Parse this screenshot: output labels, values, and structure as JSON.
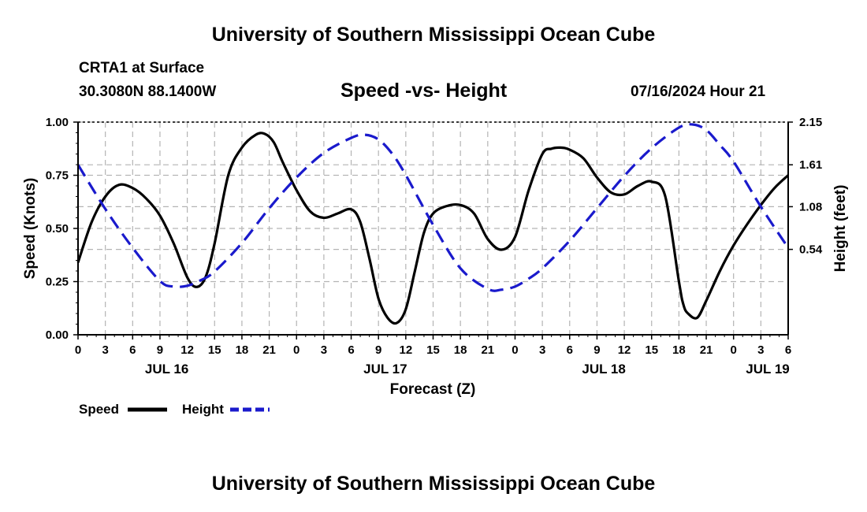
{
  "page": {
    "title_top": "University of Southern Mississippi Ocean Cube",
    "title_bottom": "University of Southern Mississippi Ocean Cube",
    "station": "CRTA1 at Surface",
    "coords": "30.3080N  88.1400W",
    "datetime": "07/16/2024 Hour 21"
  },
  "chart_data": {
    "type": "line",
    "title": "Speed -vs- Height",
    "xlabel": "Forecast (Z)",
    "ylabel": "Speed (Knots)",
    "y2label": "Height (feet)",
    "x_unit": "hours from JUL 16 00Z",
    "xlim": [
      0,
      78
    ],
    "ylim": [
      0,
      1.0
    ],
    "y2lim": [
      -0.54,
      2.15
    ],
    "x_tick_values": [
      0,
      3,
      6,
      9,
      12,
      15,
      18,
      21,
      24,
      27,
      30,
      33,
      36,
      39,
      42,
      45,
      48,
      51,
      54,
      57,
      60,
      63,
      66,
      69,
      72,
      75,
      78
    ],
    "x_tick_labels": [
      "0",
      "3",
      "6",
      "9",
      "12",
      "15",
      "18",
      "21",
      "0",
      "3",
      "6",
      "9",
      "12",
      "15",
      "18",
      "21",
      "0",
      "3",
      "6",
      "9",
      "12",
      "15",
      "18",
      "21",
      "0",
      "3",
      "6"
    ],
    "date_labels": [
      {
        "label": "JUL 16",
        "x": 9.75
      },
      {
        "label": "JUL 17",
        "x": 33.75
      },
      {
        "label": "JUL 18",
        "x": 57.75
      },
      {
        "label": "JUL 19",
        "x": 75.75
      }
    ],
    "y_tick_values": [
      0,
      0.25,
      0.5,
      0.75,
      1.0
    ],
    "y_tick_labels": [
      "0.00",
      "0.25",
      "0.50",
      "0.75",
      "1.00"
    ],
    "y2_tick_values": [
      0.54,
      1.08,
      1.61,
      2.15
    ],
    "y2_tick_labels": [
      "0.54",
      "1.08",
      "1.61",
      "2.15"
    ],
    "grid": true,
    "legend_position": "bottom-left",
    "series": [
      {
        "name": "Speed",
        "axis": "left",
        "color": "#000000",
        "dash": "solid",
        "x": [
          0,
          1.5,
          3,
          4.5,
          6,
          7.5,
          9,
          10.5,
          12,
          13,
          14,
          15,
          16.5,
          18,
          19.5,
          20.5,
          21.5,
          22.5,
          24,
          25.5,
          27,
          28.5,
          30,
          31,
          32,
          33,
          34,
          35,
          36,
          37,
          38,
          39,
          40.5,
          42,
          43.5,
          45,
          46.5,
          48,
          49.5,
          51,
          52,
          53,
          54,
          55.5,
          57,
          58.5,
          60,
          61.5,
          63,
          64.5,
          66,
          66.5,
          67,
          68,
          69,
          70.5,
          72,
          73.5,
          75,
          76.5,
          78
        ],
        "values": [
          0.34,
          0.53,
          0.65,
          0.705,
          0.69,
          0.64,
          0.56,
          0.43,
          0.27,
          0.225,
          0.27,
          0.43,
          0.75,
          0.88,
          0.94,
          0.945,
          0.905,
          0.81,
          0.68,
          0.58,
          0.55,
          0.57,
          0.59,
          0.53,
          0.36,
          0.17,
          0.08,
          0.055,
          0.12,
          0.3,
          0.48,
          0.57,
          0.605,
          0.61,
          0.57,
          0.45,
          0.4,
          0.46,
          0.68,
          0.85,
          0.875,
          0.88,
          0.87,
          0.83,
          0.74,
          0.67,
          0.66,
          0.7,
          0.72,
          0.65,
          0.25,
          0.14,
          0.1,
          0.08,
          0.16,
          0.3,
          0.42,
          0.52,
          0.61,
          0.69,
          0.75
        ]
      },
      {
        "name": "Height",
        "axis": "right",
        "color": "#1a1acc",
        "dash": "dashed",
        "x": [
          0,
          3,
          6,
          9,
          10.5,
          12,
          13.5,
          15,
          18,
          21,
          24,
          27,
          30,
          31.5,
          33,
          34.5,
          36,
          39,
          42,
          45,
          46.5,
          48,
          49.5,
          51,
          54,
          57,
          60,
          63,
          66,
          67.5,
          69,
          70.5,
          72,
          75,
          78
        ],
        "values": [
          1.61,
          1.05,
          0.56,
          0.14,
          0.07,
          0.08,
          0.15,
          0.26,
          0.62,
          1.06,
          1.45,
          1.76,
          1.95,
          1.99,
          1.93,
          1.75,
          1.48,
          0.85,
          0.3,
          0.04,
          0.03,
          0.07,
          0.17,
          0.3,
          0.65,
          1.06,
          1.47,
          1.82,
          2.08,
          2.12,
          2.05,
          1.86,
          1.65,
          1.08,
          0.56
        ]
      }
    ]
  }
}
